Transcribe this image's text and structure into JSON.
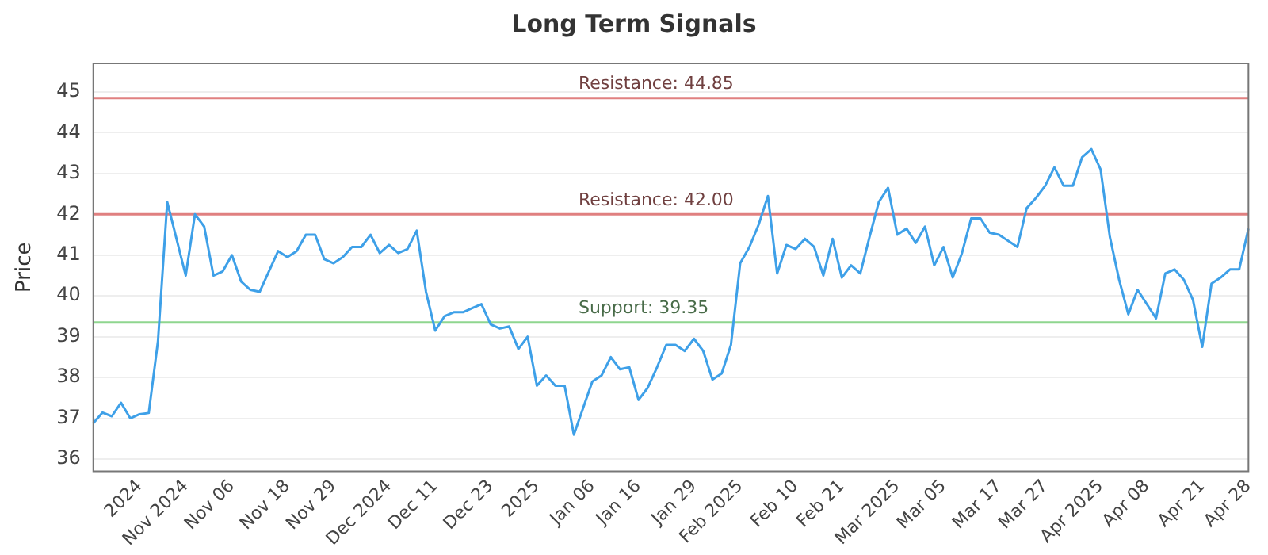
{
  "chart_data": {
    "type": "line",
    "title": "Long Term Signals",
    "ylabel": "Price",
    "categories": [
      null,
      null,
      null,
      null,
      null,
      "2024",
      null,
      null,
      null,
      null,
      "Nov 2024",
      null,
      null,
      null,
      null,
      "Nov 06",
      null,
      null,
      null,
      null,
      null,
      "Nov 18",
      null,
      null,
      null,
      null,
      "Nov 29",
      null,
      null,
      null,
      null,
      null,
      "Dec 2024",
      null,
      null,
      null,
      null,
      "Dec 11",
      null,
      null,
      null,
      null,
      null,
      "Dec 23",
      null,
      null,
      null,
      null,
      "2025",
      null,
      null,
      null,
      null,
      null,
      "Jan 06",
      null,
      null,
      null,
      null,
      "Jan 16",
      null,
      null,
      null,
      null,
      null,
      "Jan 29",
      null,
      null,
      null,
      null,
      "Feb 2025",
      null,
      null,
      null,
      null,
      null,
      "Feb 10",
      null,
      null,
      null,
      null,
      "Feb 21",
      null,
      null,
      null,
      null,
      null,
      "Mar 2025",
      null,
      null,
      null,
      null,
      "Mar 05",
      null,
      null,
      null,
      null,
      null,
      "Mar 17",
      null,
      null,
      null,
      null,
      "Mar 27",
      null,
      null,
      null,
      null,
      null,
      "Apr 2025",
      null,
      null,
      null,
      null,
      "Apr 08",
      null,
      null,
      null,
      null,
      null,
      "Apr 21",
      null,
      null,
      null,
      null,
      "Apr 28"
    ],
    "series": [
      {
        "color": "#3ea0e8",
        "values": [
          36.88,
          37.14,
          37.05,
          37.38,
          37.0,
          37.1,
          37.13,
          38.9,
          42.3,
          41.4,
          40.5,
          42.0,
          41.7,
          40.5,
          40.6,
          41.0,
          40.35,
          40.15,
          40.1,
          40.6,
          41.1,
          40.95,
          41.1,
          41.5,
          41.5,
          40.9,
          40.8,
          40.95,
          41.2,
          41.2,
          41.5,
          41.05,
          41.25,
          41.05,
          41.15,
          41.6,
          40.1,
          39.15,
          39.5,
          39.6,
          39.6,
          39.7,
          39.8,
          39.3,
          39.2,
          39.25,
          38.7,
          39.0,
          37.8,
          38.05,
          37.8,
          37.8,
          36.6,
          37.25,
          37.9,
          38.05,
          38.5,
          38.2,
          38.25,
          37.45,
          37.75,
          38.25,
          38.8,
          38.8,
          38.65,
          38.95,
          38.65,
          37.95,
          38.1,
          38.8,
          40.8,
          41.2,
          41.75,
          42.45,
          40.55,
          41.25,
          41.15,
          41.4,
          41.2,
          40.5,
          41.4,
          40.45,
          40.75,
          40.55,
          41.45,
          42.3,
          42.65,
          41.5,
          41.65,
          41.3,
          41.7,
          40.75,
          41.2,
          40.45,
          41.05,
          41.9,
          41.9,
          41.55,
          41.5,
          41.35,
          41.2,
          42.15,
          42.4,
          42.7,
          43.15,
          42.7,
          42.7,
          43.4,
          43.6,
          43.1,
          41.45,
          40.4,
          39.55,
          40.15,
          39.8,
          39.45,
          40.55,
          40.65,
          40.4,
          39.9,
          38.75,
          40.3,
          40.45,
          40.65,
          40.65,
          41.65
        ]
      }
    ],
    "ylim": [
      35.7,
      45.7
    ],
    "yticks": [
      36,
      37,
      38,
      39,
      40,
      41,
      42,
      43,
      44,
      45
    ],
    "grid": "y",
    "marker": "none",
    "line_style": "solid",
    "ref_lines": [
      {
        "axis": "y",
        "value": 44.85,
        "label": "Resistance: 44.85",
        "color": "#e08080"
      },
      {
        "axis": "y",
        "value": 42.0,
        "label": "Resistance: 42.00",
        "color": "#e08080"
      },
      {
        "axis": "y",
        "value": 39.35,
        "label": "Support: 39.35",
        "color": "#8fd68f"
      }
    ]
  }
}
